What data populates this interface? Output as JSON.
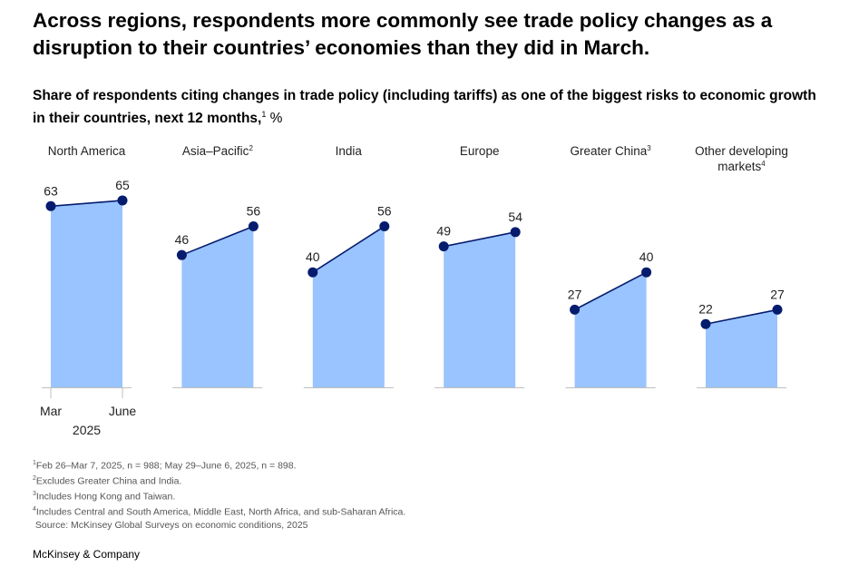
{
  "headline": "Across regions, respondents more commonly see trade policy changes as a disruption to their countries’ economies than they did in March.",
  "subtitle": {
    "text": "Share of respondents citing changes in trade policy (including tariffs) as one of the biggest risks to economic growth in their countries, next 12 months,",
    "note_ref": "1",
    "unit": " %"
  },
  "chart_data": {
    "type": "area",
    "x_labels": [
      "Mar",
      "June"
    ],
    "x_group_label": "2025",
    "ylim": [
      0,
      70
    ],
    "grid": false,
    "colors": {
      "fill": "#99c4ff",
      "line": "#051c6e",
      "axis": "#bfbfbf",
      "label": "#222222"
    },
    "panels": [
      {
        "region": "North America",
        "note_ref": "",
        "values": [
          63,
          65
        ]
      },
      {
        "region": "Asia–Pacific",
        "note_ref": "2",
        "values": [
          46,
          56
        ]
      },
      {
        "region": "India",
        "note_ref": "",
        "values": [
          40,
          56
        ]
      },
      {
        "region": "Europe",
        "note_ref": "",
        "values": [
          49,
          54
        ]
      },
      {
        "region": "Greater China",
        "note_ref": "3",
        "values": [
          27,
          40
        ]
      },
      {
        "region": "Other developing markets",
        "note_ref": "4",
        "values": [
          22,
          27
        ]
      }
    ]
  },
  "footnotes": [
    {
      "ref": "1",
      "text": "Feb 26–Mar 7, 2025, n = 988; May 29–June 6, 2025, n = 898."
    },
    {
      "ref": "2",
      "text": "Excludes Greater China and India."
    },
    {
      "ref": "3",
      "text": "Includes Hong Kong and Taiwan."
    },
    {
      "ref": "4",
      "text": "Includes Central and South America, Middle East, North Africa, and sub-Saharan Africa."
    }
  ],
  "source": "Source: McKinsey Global Surveys on economic conditions, 2025",
  "brand": "McKinsey & Company"
}
